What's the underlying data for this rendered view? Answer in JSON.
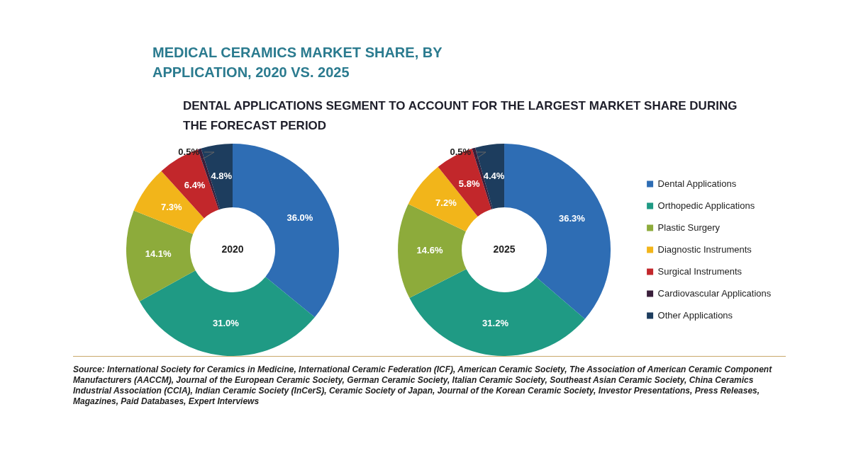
{
  "chart_data": [
    {
      "type": "donut",
      "title": "MEDICAL CERAMICS MARKET SHARE, BY APPLICATION, 2020 VS. 2025",
      "subtitle": "DENTAL APPLICATIONS SEGMENT TO ACCOUNT FOR THE LARGEST MARKET SHARE DURING THE FORECAST PERIOD",
      "categories": [
        null,
        null,
        null,
        null,
        null,
        null,
        null
      ],
      "values": [
        36.0,
        31.0,
        14.1,
        7.3,
        6.4,
        0.5,
        4.8
      ],
      "value_labels": [
        "36.0%",
        "31.0%",
        "14.1%",
        "7.3%",
        "6.4%",
        "0.5%",
        "4.8%"
      ],
      "colors": [
        "#2e6db4",
        "#1f9a84",
        "#8dab3b",
        "#f2b51a",
        "#c2272b",
        "#3a1f3b",
        "#1d3d5e"
      ],
      "annotations": [
        "2020",
        "Source: International Society for Ceramics in Medicine, International Ceramic Federation (ICF), American Ceramic Society, The Association of American Ceramic Component Manufacturers (AACCM), Journal of the European Ceramic Society, German Ceramic Society, Italian Ceramic Society, Southeast Asian Ceramic Society, China Ceramics Industrial Association (CCIA), Indian Ceramic Society (InCerS), Ceramic Society of Japan, Journal of the Korean Ceramic Society, Investor Presentations, Press Releases, Magazines, Paid Databases, Expert Interviews"
      ],
      "legend": false
    },
    {
      "type": "donut",
      "categories": [
        "Dental Applications",
        "Orthopedic Applications",
        "Plastic Surgery",
        "Diagnostic Instruments",
        "Surgical Instruments",
        "Cardiovascular Applications",
        "Other Applications"
      ],
      "values": [
        36.3,
        31.2,
        14.6,
        7.2,
        5.8,
        0.5,
        4.4
      ],
      "value_labels": [
        "36.3%",
        "31.2%",
        "14.6%",
        "7.2%",
        "5.8%",
        "0.5%",
        "4.4%"
      ],
      "colors": [
        "#2e6db4",
        "#1f9a84",
        "#8dab3b",
        "#f2b51a",
        "#c2272b",
        "#3a1f3b",
        "#1d3d5e"
      ],
      "annotations": [
        "2025"
      ],
      "legend": "right"
    }
  ]
}
